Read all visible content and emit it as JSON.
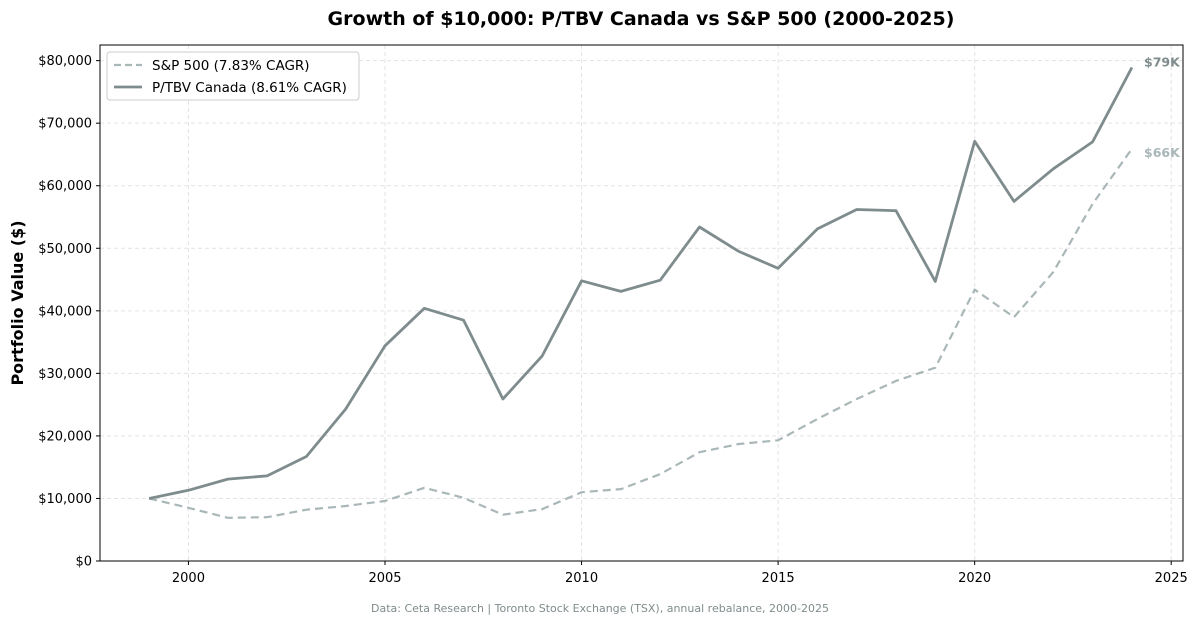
{
  "chart_data": {
    "type": "line",
    "title": "Growth of $10,000: P/TBV Canada vs S&P 500 (2000-2025)",
    "xlabel": "",
    "ylabel": "Portfolio Value ($)",
    "xlim": [
      1997.75,
      2025.3
    ],
    "ylim": [
      0,
      82500
    ],
    "xticks": [
      2000,
      2005,
      2010,
      2015,
      2020,
      2025
    ],
    "xtick_labels": [
      "2000",
      "2005",
      "2010",
      "2015",
      "2020",
      "2025"
    ],
    "yticks": [
      0,
      10000,
      20000,
      30000,
      40000,
      50000,
      60000,
      70000,
      80000
    ],
    "ytick_labels": [
      "$0",
      "$10,000",
      "$20,000",
      "$30,000",
      "$40,000",
      "$50,000",
      "$60,000",
      "$70,000",
      "$80,000"
    ],
    "grid": true,
    "legend_position": "top-left",
    "x": [
      1999,
      2000,
      2001,
      2002,
      2003,
      2004,
      2005,
      2006,
      2007,
      2008,
      2009,
      2010,
      2011,
      2012,
      2013,
      2014,
      2015,
      2016,
      2017,
      2018,
      2019,
      2020,
      2021,
      2022,
      2023,
      2024
    ],
    "series": [
      {
        "name": "S&P 500 (7.83% CAGR)",
        "color": "#aab7b8",
        "style": "dashed",
        "end_label": "$66K",
        "values": [
          10000,
          8500,
          6900,
          7000,
          8200,
          8800,
          9600,
          11700,
          10100,
          7400,
          8300,
          11000,
          11500,
          13900,
          17400,
          18700,
          19300,
          22700,
          25900,
          28800,
          30900,
          43400,
          39000,
          46200,
          57100,
          65900
        ]
      },
      {
        "name": "P/TBV Canada (8.61% CAGR)",
        "color": "#7f8c8d",
        "style": "solid",
        "end_label": "$79K",
        "values": [
          10000,
          11300,
          13100,
          13600,
          16700,
          24300,
          34400,
          40400,
          38500,
          25900,
          32800,
          44800,
          43100,
          44900,
          53400,
          49500,
          46800,
          53100,
          56200,
          56000,
          44700,
          67100,
          57500,
          62700,
          67000,
          78900
        ]
      }
    ],
    "source_note": "Data: Ceta Research | Toronto Stock Exchange (TSX), annual rebalance, 2000-2025"
  }
}
